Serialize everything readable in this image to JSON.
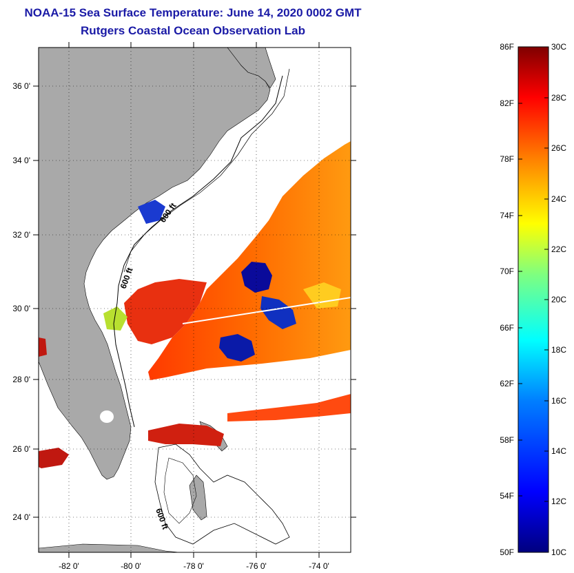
{
  "header": {
    "title": "NOAA-15 Sea Surface Temperature:  June 14, 2020 0002 GMT",
    "subtitle": "Rutgers Coastal Ocean Observation Lab"
  },
  "map": {
    "lon_ticks": [
      "-82 0'",
      "-80 0'",
      "-78 0'",
      "-76 0'",
      "-74 0'"
    ],
    "lat_ticks": [
      "36 0'",
      "34 0'",
      "32 0'",
      "30 0'",
      "28 0'",
      "26 0'",
      "24 0'"
    ],
    "contour_labels": [
      "600 ft",
      "600 ft",
      "600 ft"
    ],
    "land_color": "#a9a9a9",
    "no_data_color": "#ffffff"
  },
  "colorbar": {
    "fahrenheit_labels": [
      "86F",
      "82F",
      "78F",
      "74F",
      "70F",
      "66F",
      "62F",
      "58F",
      "54F",
      "50F"
    ],
    "celsius_labels": [
      "30C",
      "28C",
      "26C",
      "24C",
      "22C",
      "20C",
      "18C",
      "16C",
      "14C",
      "12C",
      "10C"
    ],
    "colors": [
      "#00007f",
      "#0000ff",
      "#007fff",
      "#00ffff",
      "#7fff7f",
      "#ffff00",
      "#ff7f00",
      "#ff0000",
      "#7f0000"
    ]
  }
}
